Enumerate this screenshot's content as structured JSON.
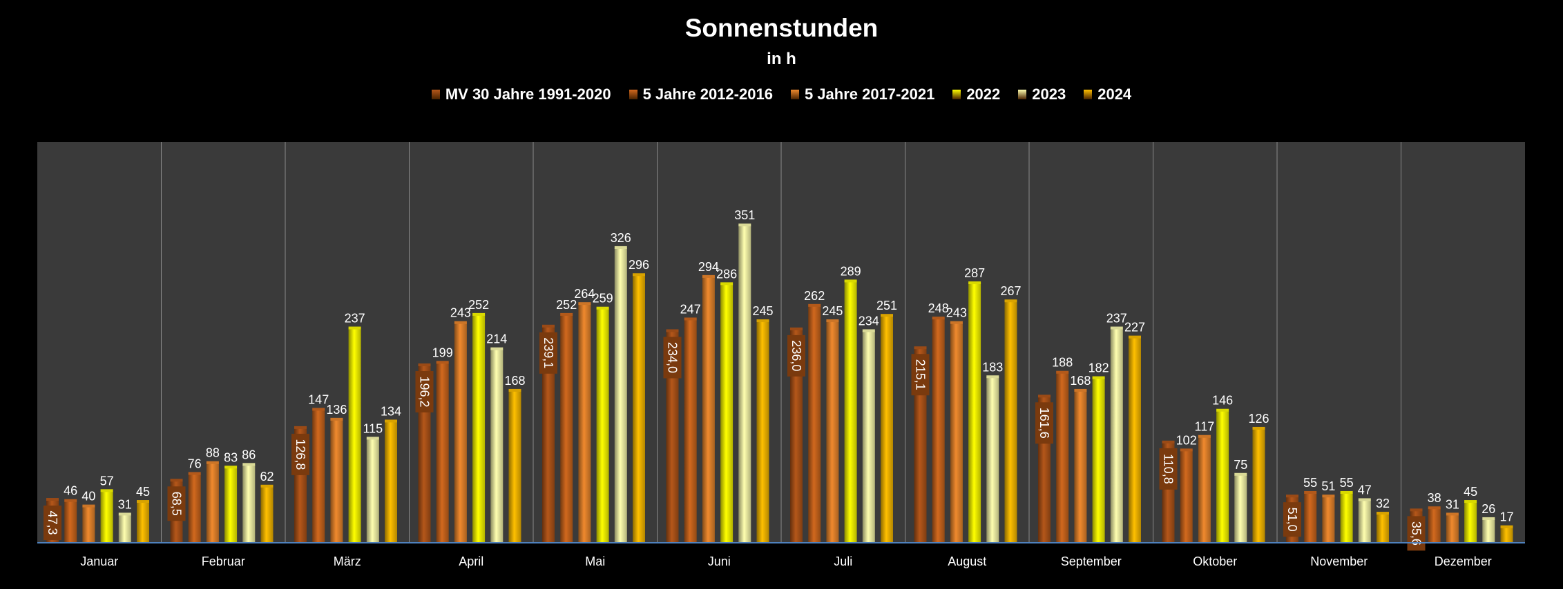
{
  "chart_data": {
    "type": "bar",
    "title": "Sonnenstunden",
    "subtitle": "in h",
    "categories": [
      "Januar",
      "Februar",
      "März",
      "April",
      "Mai",
      "Juni",
      "Juli",
      "August",
      "September",
      "Oktober",
      "November",
      "Dezember"
    ],
    "ylim": [
      0,
      400
    ],
    "legend_position": "top",
    "series": [
      {
        "name": "MV 30 Jahre 1991-2020",
        "color": "#B5571A",
        "values": [
          47.3,
          68.5,
          126.8,
          196.2,
          239.1,
          234.0,
          236.0,
          215.1,
          161.6,
          110.8,
          51.0,
          35.6
        ],
        "labels": [
          "47,3",
          "68,5",
          "126,8",
          "196,2",
          "239,1",
          "234,0",
          "236,0",
          "215,1",
          "161,6",
          "110,8",
          "51,0",
          "35,6"
        ]
      },
      {
        "name": "5 Jahre 2012-2016",
        "color": "#D2691E",
        "values": [
          46,
          76,
          147,
          199,
          252,
          247,
          262,
          248,
          188,
          102,
          55,
          38
        ]
      },
      {
        "name": "5 Jahre 2017-2021",
        "color": "#F08A2E",
        "values": [
          40,
          88,
          136,
          243,
          264,
          294,
          245,
          243,
          168,
          117,
          51,
          31
        ]
      },
      {
        "name": "2022",
        "color": "#FFFF00",
        "values": [
          57,
          83,
          237,
          252,
          259,
          286,
          289,
          287,
          182,
          146,
          55,
          45
        ]
      },
      {
        "name": "2023",
        "color": "#FFFFB0",
        "values": [
          31,
          86,
          115,
          214,
          326,
          351,
          234,
          183,
          237,
          75,
          47,
          26
        ]
      },
      {
        "name": "2024",
        "color": "#FFC000",
        "values": [
          45,
          62,
          134,
          168,
          296,
          245,
          251,
          267,
          227,
          126,
          32,
          17
        ]
      }
    ]
  }
}
